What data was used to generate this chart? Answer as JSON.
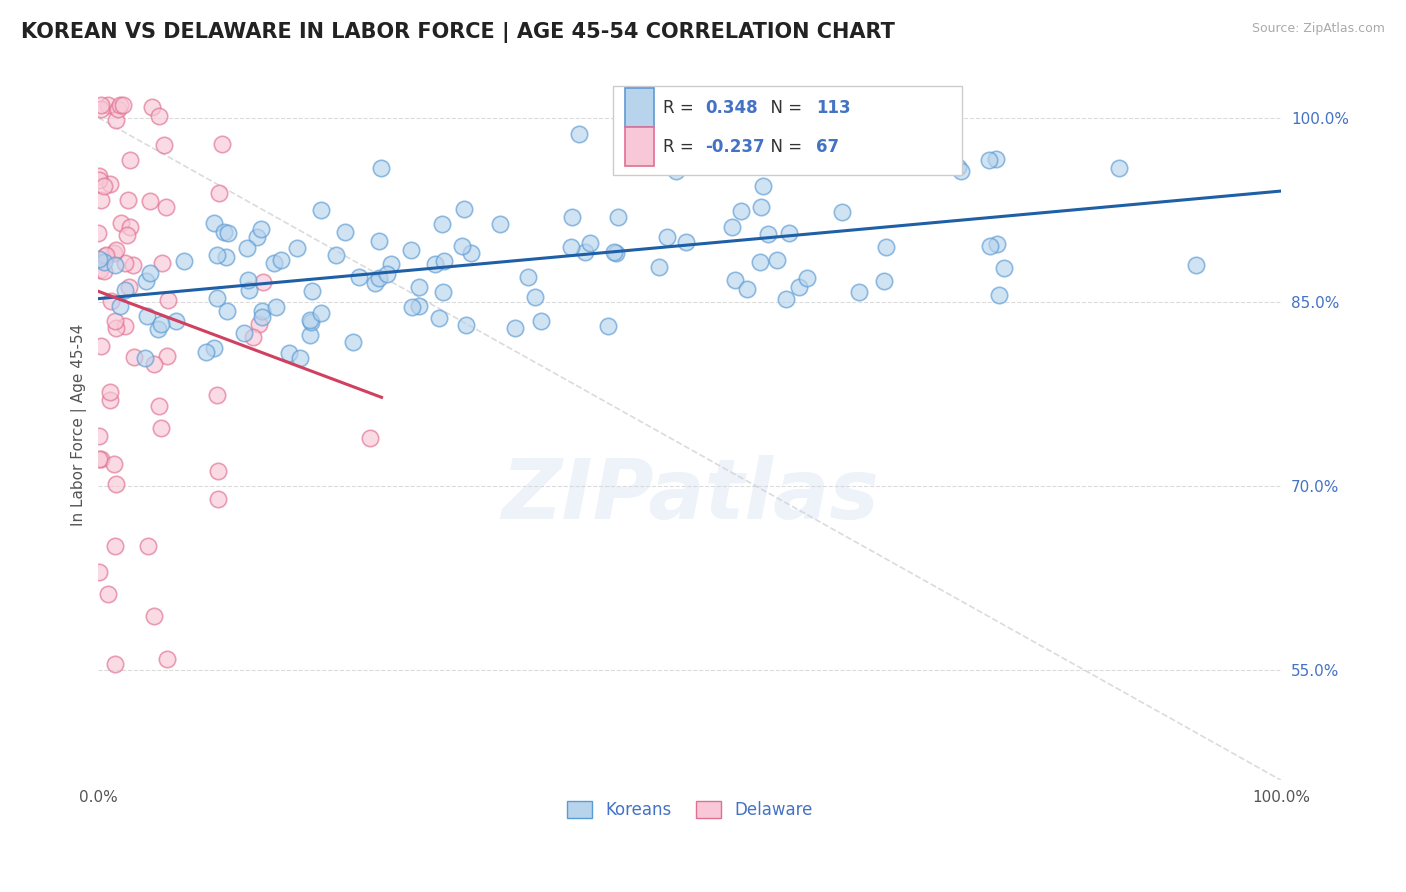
{
  "title": "KOREAN VS DELAWARE IN LABOR FORCE | AGE 45-54 CORRELATION CHART",
  "source": "Source: ZipAtlas.com",
  "ylabel": "In Labor Force | Age 45-54",
  "xlim": [
    0.0,
    1.0
  ],
  "ylim": [
    0.46,
    1.04
  ],
  "y_ticks": [
    0.55,
    0.7,
    0.85,
    1.0
  ],
  "y_tick_labels": [
    "55.0%",
    "70.0%",
    "85.0%",
    "100.0%"
  ],
  "korean_color": "#b8d4ec",
  "korean_edge_color": "#5b9bd5",
  "delaware_color": "#f8c8d8",
  "delaware_edge_color": "#e07090",
  "trend_korean_color": "#1f5fa6",
  "trend_delaware_color": "#d04060",
  "ref_line_color": "#cccccc",
  "grid_color": "#cccccc",
  "R_korean": 0.348,
  "N_korean": 113,
  "R_delaware": -0.237,
  "N_delaware": 67,
  "legend_labels": [
    "Koreans",
    "Delaware"
  ],
  "watermark": "ZIPatlas",
  "background_color": "#ffffff",
  "title_color": "#222222",
  "source_color": "#aaaaaa",
  "ylabel_color": "#555555",
  "yticklabel_color": "#4472c4",
  "title_fontsize": 15,
  "tick_fontsize": 11,
  "dot_size": 140,
  "dot_alpha": 0.65,
  "seed": 12
}
